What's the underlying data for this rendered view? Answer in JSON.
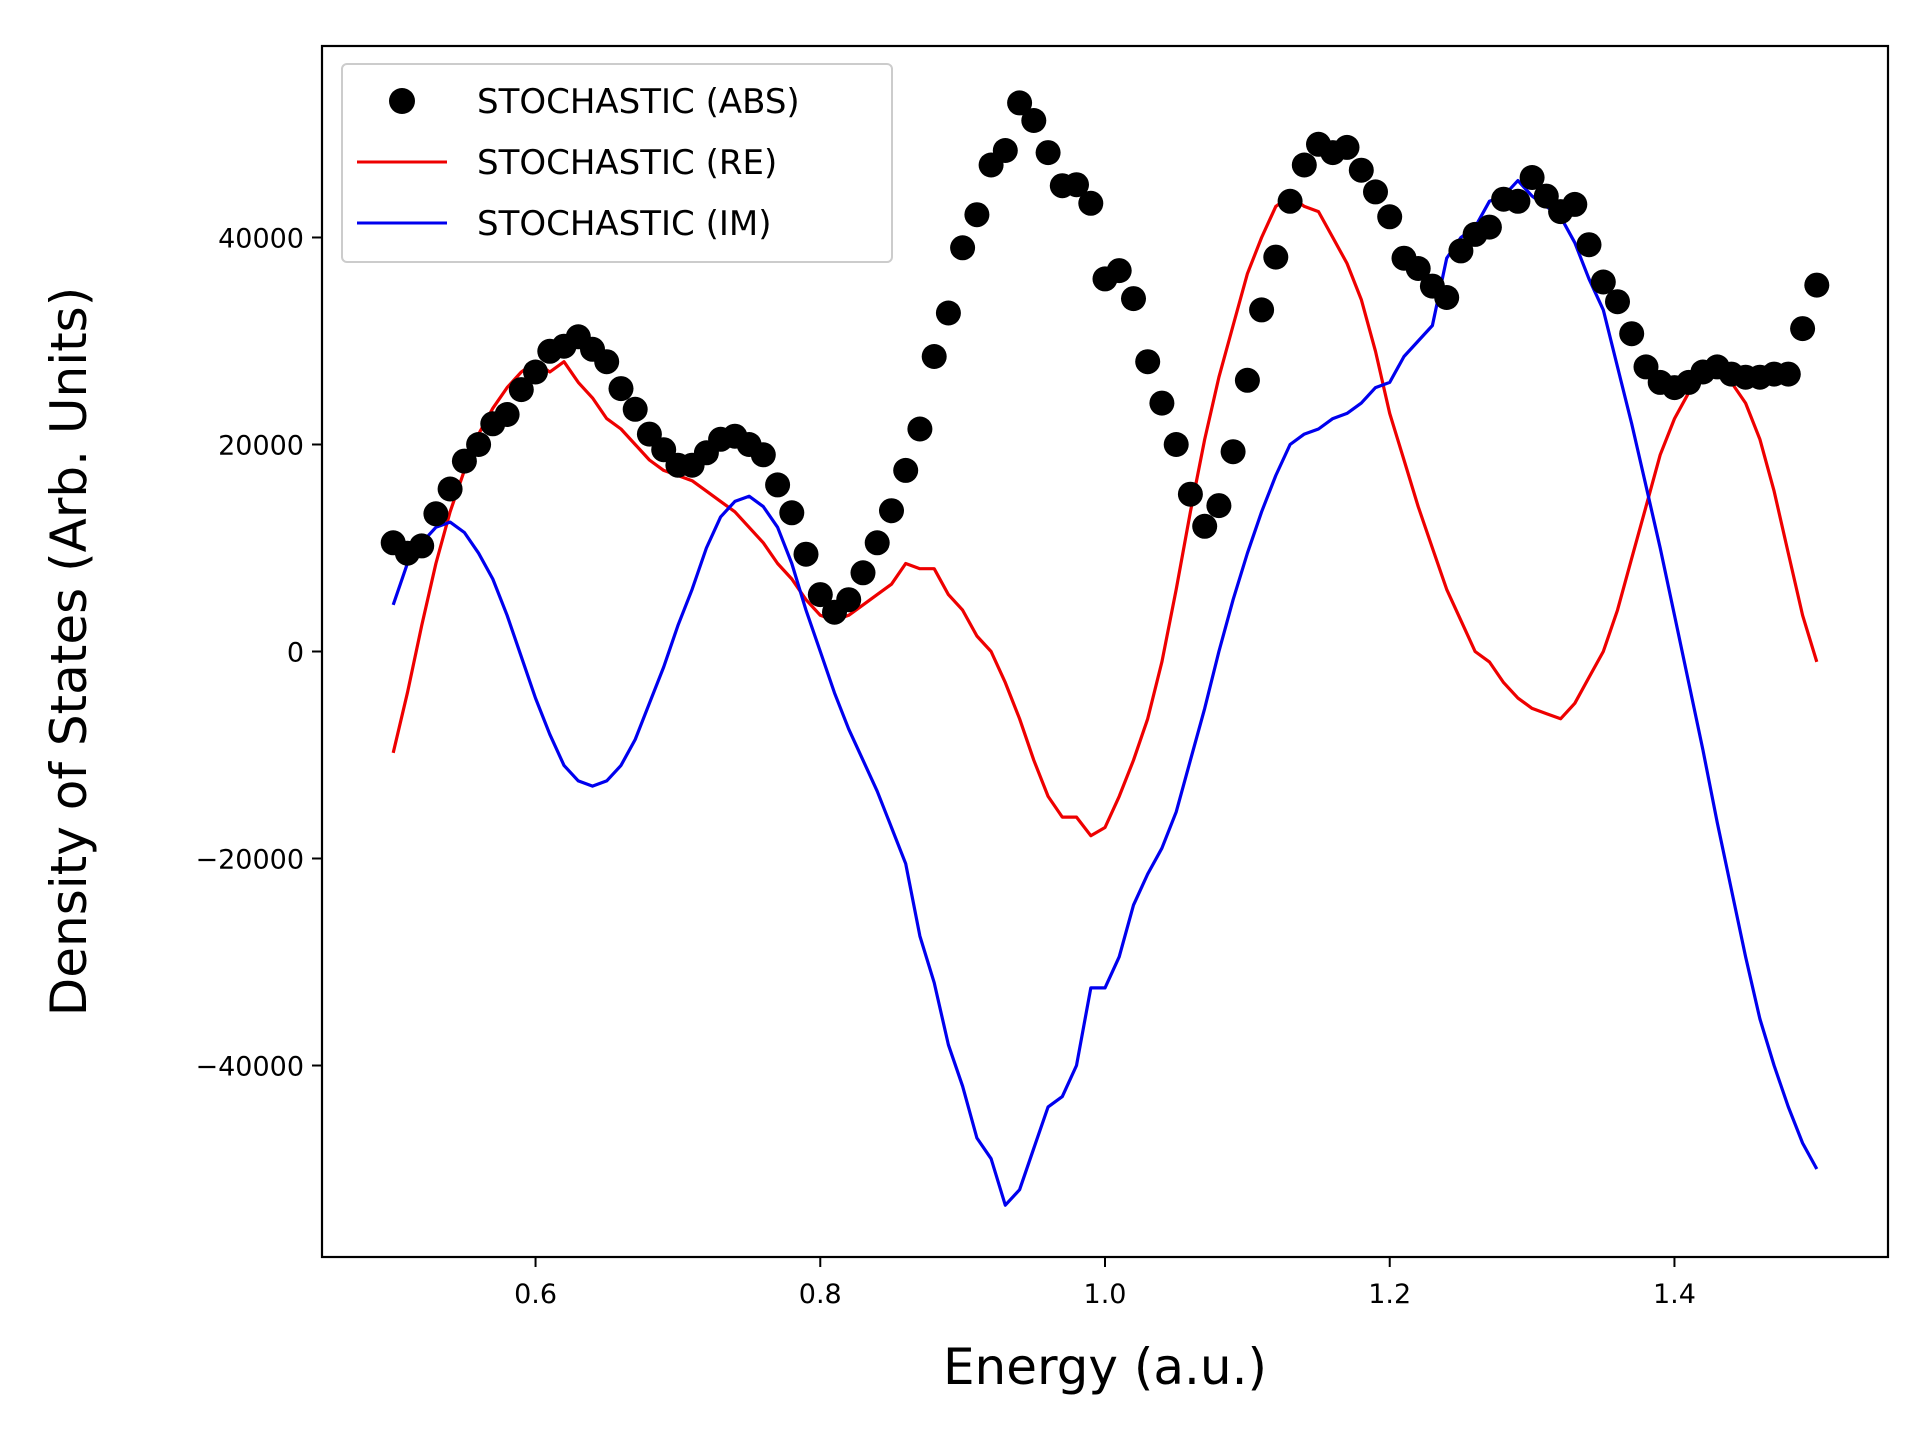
{
  "chart_data": {
    "type": "line",
    "xlabel": "Energy (a.u.)",
    "ylabel": "Density of States (Arb. Units)",
    "xlim": [
      0.45,
      1.55
    ],
    "ylim": [
      -58500,
      58500
    ],
    "xticks": [
      0.6,
      0.8,
      1.0,
      1.2,
      1.4
    ],
    "xtick_labels": [
      "0.6",
      "0.8",
      "1.0",
      "1.2",
      "1.4"
    ],
    "yticks": [
      -40000,
      -20000,
      0,
      20000,
      40000
    ],
    "ytick_labels": [
      "−40000",
      "−20000",
      "0",
      "20000",
      "40000"
    ],
    "grid": false,
    "legend_position": "top-left",
    "series": [
      {
        "name": "STOCHASTIC (ABS)",
        "style": "markers",
        "color": "#000000",
        "x": [
          0.5,
          0.51,
          0.52,
          0.53,
          0.54,
          0.55,
          0.56,
          0.57,
          0.58,
          0.59,
          0.6,
          0.61,
          0.62,
          0.63,
          0.64,
          0.65,
          0.66,
          0.67,
          0.68,
          0.69,
          0.7,
          0.71,
          0.72,
          0.73,
          0.74,
          0.75,
          0.76,
          0.77,
          0.78,
          0.79,
          0.8,
          0.81,
          0.82,
          0.83,
          0.84,
          0.85,
          0.86,
          0.87,
          0.88,
          0.89,
          0.9,
          0.91,
          0.92,
          0.93,
          0.94,
          0.95,
          0.96,
          0.97,
          0.98,
          0.99,
          1.0,
          1.01,
          1.02,
          1.03,
          1.04,
          1.05,
          1.06,
          1.07,
          1.08,
          1.09,
          1.1,
          1.11,
          1.12,
          1.13,
          1.14,
          1.15,
          1.16,
          1.17,
          1.18,
          1.19,
          1.2,
          1.21,
          1.22,
          1.23,
          1.24,
          1.25,
          1.26,
          1.27,
          1.28,
          1.29,
          1.3,
          1.31,
          1.32,
          1.33,
          1.34,
          1.35,
          1.36,
          1.37,
          1.38,
          1.39,
          1.4,
          1.41,
          1.42,
          1.43,
          1.44,
          1.45,
          1.46,
          1.47,
          1.48,
          1.49,
          1.5
        ],
        "y": [
          10500,
          9500,
          10200,
          13300,
          15700,
          18400,
          20000,
          22000,
          22900,
          25300,
          27000,
          29000,
          29500,
          30400,
          29200,
          28000,
          25400,
          23400,
          21000,
          19500,
          18000,
          18000,
          19200,
          20500,
          20800,
          20000,
          19000,
          16100,
          13400,
          9400,
          5500,
          3800,
          5000,
          7600,
          10500,
          13600,
          17500,
          21500,
          28500,
          32700,
          39000,
          42200,
          47000,
          48400,
          53000,
          51300,
          48200,
          45000,
          45100,
          43300,
          36000,
          36800,
          34100,
          28000,
          24000,
          20000,
          15200,
          12100,
          14100,
          19300,
          26200,
          33000,
          38100,
          43500,
          47000,
          49000,
          48200,
          48700,
          46500,
          44400,
          42000,
          38000,
          37000,
          35300,
          34200,
          38700,
          40300,
          41000,
          43700,
          43500,
          45800,
          44000,
          42500,
          43200,
          39300,
          35700,
          33800,
          30700,
          27500,
          26000,
          25500,
          26000,
          27000,
          27500,
          26800,
          26500,
          26500,
          26800,
          26800,
          31200,
          35400
        ]
      },
      {
        "name": "STOCHASTIC (RE)",
        "style": "line",
        "color": "#ee0000",
        "x": [
          0.5,
          0.51,
          0.52,
          0.53,
          0.54,
          0.55,
          0.56,
          0.57,
          0.58,
          0.59,
          0.6,
          0.61,
          0.62,
          0.63,
          0.64,
          0.65,
          0.66,
          0.67,
          0.68,
          0.69,
          0.7,
          0.71,
          0.72,
          0.73,
          0.74,
          0.75,
          0.76,
          0.77,
          0.78,
          0.79,
          0.8,
          0.81,
          0.82,
          0.83,
          0.84,
          0.85,
          0.86,
          0.87,
          0.88,
          0.89,
          0.9,
          0.91,
          0.92,
          0.93,
          0.94,
          0.95,
          0.96,
          0.97,
          0.98,
          0.99,
          1.0,
          1.01,
          1.02,
          1.03,
          1.04,
          1.05,
          1.06,
          1.07,
          1.08,
          1.09,
          1.1,
          1.11,
          1.12,
          1.13,
          1.14,
          1.15,
          1.16,
          1.17,
          1.18,
          1.19,
          1.2,
          1.21,
          1.22,
          1.23,
          1.24,
          1.25,
          1.26,
          1.27,
          1.28,
          1.29,
          1.3,
          1.31,
          1.32,
          1.33,
          1.34,
          1.35,
          1.36,
          1.37,
          1.38,
          1.39,
          1.4,
          1.41,
          1.42,
          1.43,
          1.44,
          1.45,
          1.46,
          1.47,
          1.48,
          1.49,
          1.5
        ],
        "y": [
          -9800,
          -4000,
          2500,
          8500,
          13500,
          17500,
          21000,
          23500,
          25500,
          27000,
          28000,
          27000,
          28000,
          26000,
          24500,
          22500,
          21500,
          20000,
          18500,
          17500,
          17000,
          16500,
          15500,
          14500,
          13500,
          12000,
          10500,
          8500,
          7000,
          5000,
          3500,
          3000,
          3500,
          4500,
          5500,
          6500,
          8500,
          8000,
          8000,
          5500,
          4000,
          1500,
          0,
          -3000,
          -6500,
          -10500,
          -14000,
          -16000,
          -16000,
          -17800,
          -17000,
          -14000,
          -10500,
          -6500,
          -1000,
          6000,
          13500,
          20500,
          26500,
          31500,
          36500,
          40000,
          43000,
          44000,
          43000,
          42500,
          40000,
          37500,
          34000,
          29000,
          23000,
          18500,
          14000,
          10000,
          6000,
          3000,
          0,
          -1000,
          -3000,
          -4500,
          -5500,
          -6000,
          -6500,
          -5000,
          -2500,
          0,
          4000,
          9000,
          14000,
          19000,
          22500,
          25000,
          26500,
          27000,
          26000,
          24000,
          20500,
          15500,
          9500,
          3500,
          -1000
        ]
      },
      {
        "name": "STOCHASTIC (IM)",
        "style": "line",
        "color": "#0000ee",
        "x": [
          0.5,
          0.51,
          0.52,
          0.53,
          0.54,
          0.55,
          0.56,
          0.57,
          0.58,
          0.59,
          0.6,
          0.61,
          0.62,
          0.63,
          0.64,
          0.65,
          0.66,
          0.67,
          0.68,
          0.69,
          0.7,
          0.71,
          0.72,
          0.73,
          0.74,
          0.75,
          0.76,
          0.77,
          0.78,
          0.79,
          0.8,
          0.81,
          0.82,
          0.83,
          0.84,
          0.85,
          0.86,
          0.87,
          0.88,
          0.89,
          0.9,
          0.91,
          0.92,
          0.93,
          0.94,
          0.95,
          0.96,
          0.97,
          0.98,
          0.99,
          1.0,
          1.01,
          1.02,
          1.03,
          1.04,
          1.05,
          1.06,
          1.07,
          1.08,
          1.09,
          1.1,
          1.11,
          1.12,
          1.13,
          1.14,
          1.15,
          1.16,
          1.17,
          1.18,
          1.19,
          1.2,
          1.21,
          1.22,
          1.23,
          1.24,
          1.25,
          1.26,
          1.27,
          1.28,
          1.29,
          1.3,
          1.31,
          1.32,
          1.33,
          1.34,
          1.35,
          1.36,
          1.37,
          1.38,
          1.39,
          1.4,
          1.41,
          1.42,
          1.43,
          1.44,
          1.45,
          1.46,
          1.47,
          1.48,
          1.49,
          1.5
        ],
        "y": [
          4500,
          8500,
          10500,
          12000,
          12500,
          11500,
          9500,
          7000,
          3500,
          -500,
          -4500,
          -8000,
          -11000,
          -12500,
          -13000,
          -12500,
          -11000,
          -8500,
          -5000,
          -1500,
          2500,
          6000,
          10000,
          13000,
          14500,
          15000,
          14000,
          12000,
          8500,
          4000,
          0,
          -4000,
          -7500,
          -10500,
          -13500,
          -17000,
          -20500,
          -27500,
          -32000,
          -38000,
          -42000,
          -47000,
          -49000,
          -53500,
          -52000,
          -48000,
          -44000,
          -43000,
          -40000,
          -32500,
          -32500,
          -29500,
          -24500,
          -21500,
          -19000,
          -15500,
          -10500,
          -5500,
          0,
          5000,
          9500,
          13500,
          17000,
          20000,
          21000,
          21500,
          22500,
          23000,
          24000,
          25500,
          26000,
          28500,
          30000,
          31500,
          38000,
          40000,
          41000,
          43500,
          44000,
          45500,
          44000,
          43000,
          42000,
          39500,
          36000,
          33000,
          27500,
          22000,
          16000,
          10000,
          3500,
          -3000,
          -9500,
          -16500,
          -23000,
          -29500,
          -35500,
          -40000,
          -44000,
          -47500,
          -50000
        ]
      }
    ]
  }
}
